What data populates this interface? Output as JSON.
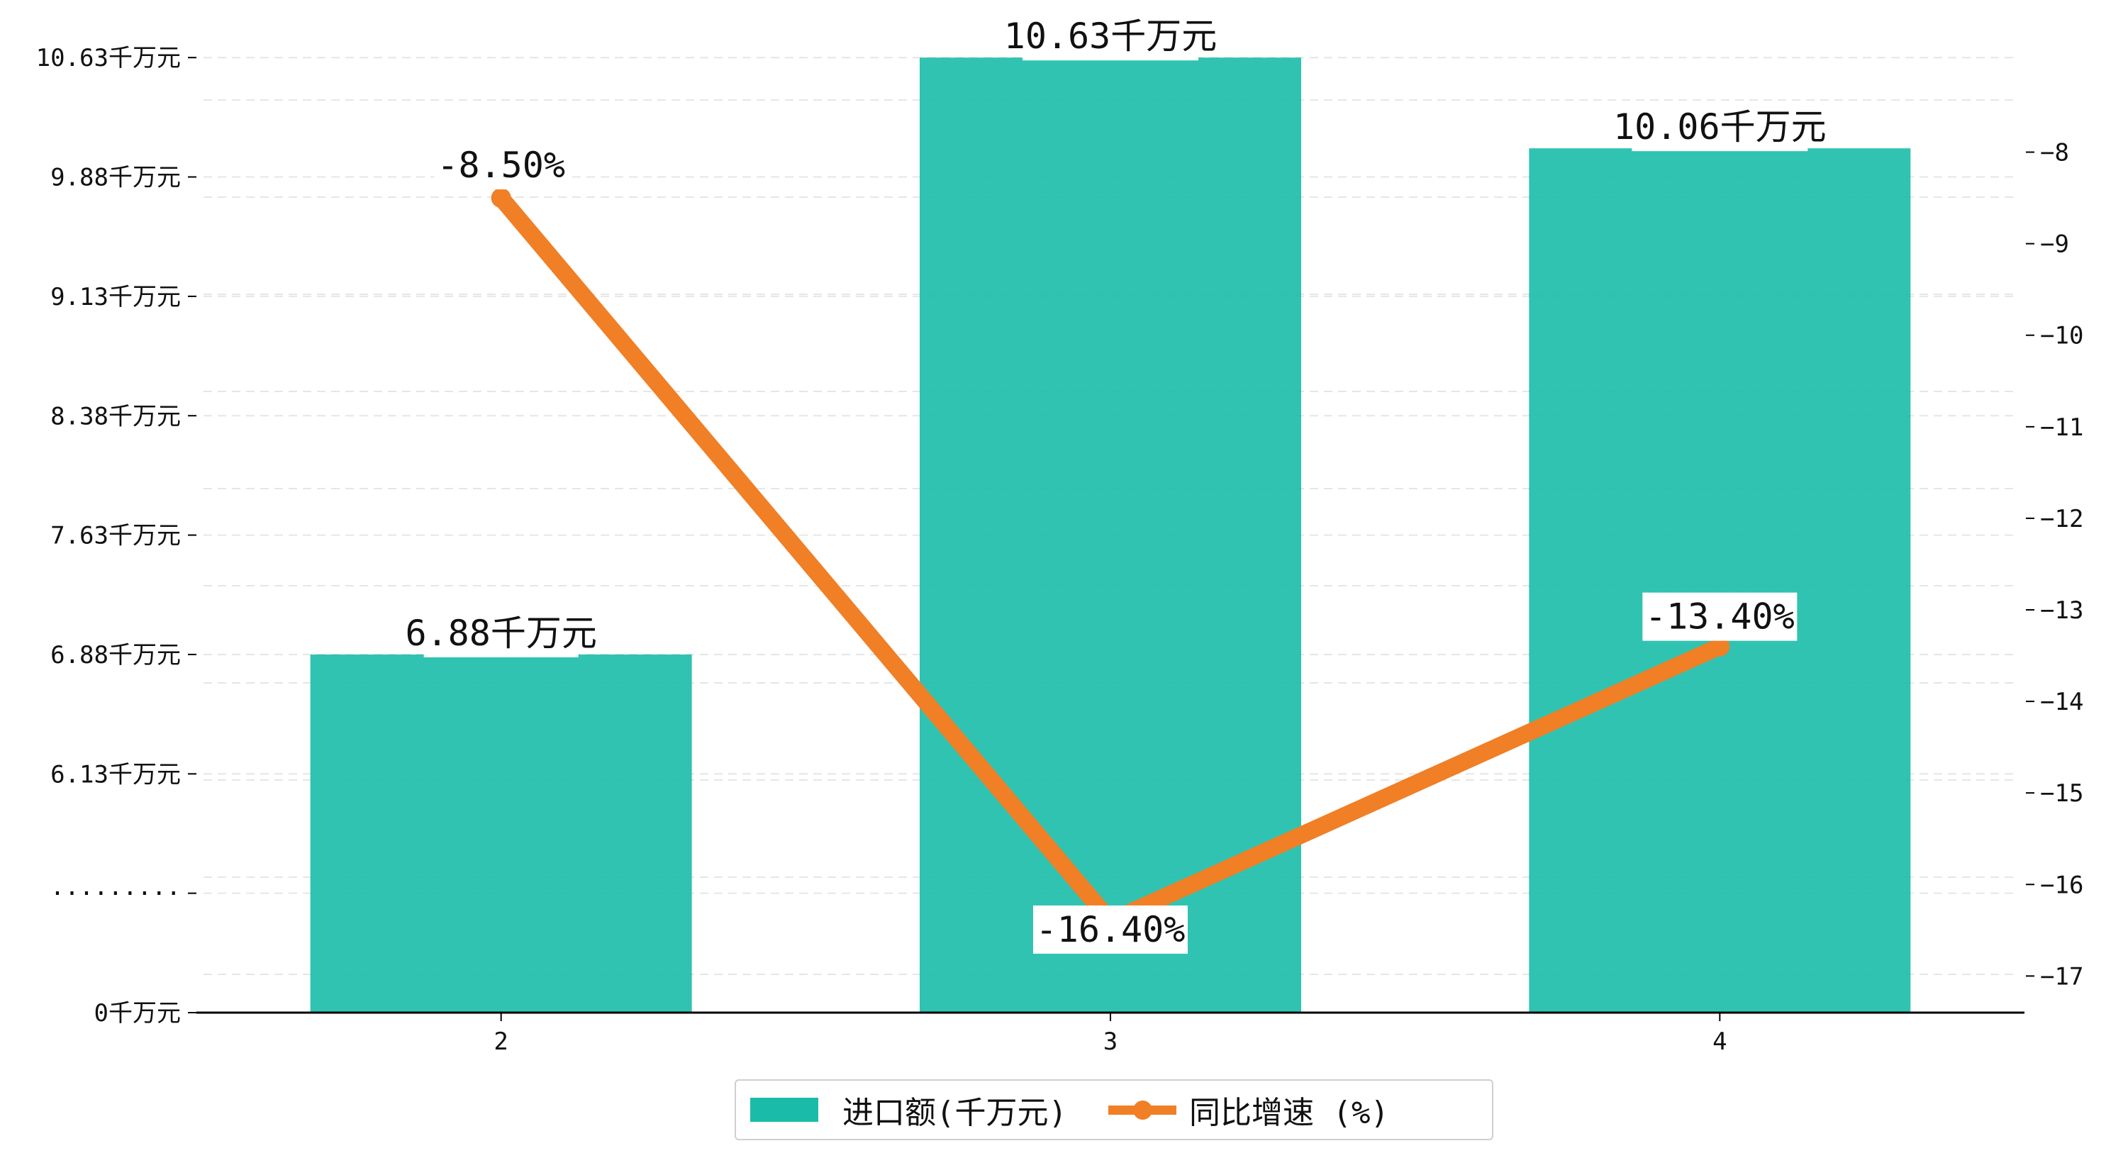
{
  "chart_data": {
    "type": "bar+line",
    "categories": [
      "2",
      "3",
      "4"
    ],
    "series": [
      {
        "name": "进口额(千万元)",
        "type": "bar",
        "axis": "left",
        "values": [
          6.88,
          10.63,
          10.06
        ],
        "labels": [
          "6.88千万元",
          "10.63千万元",
          "10.06千万元"
        ],
        "color": "#1ABCA9"
      },
      {
        "name": "同比增速 (%)",
        "type": "line",
        "axis": "right",
        "values": [
          -8.5,
          -16.4,
          -13.4
        ],
        "labels": [
          "-8.50%",
          "-16.40%",
          "-13.40%"
        ],
        "color": "#F07F26"
      }
    ],
    "left_axis": {
      "ticks": [
        0,
        0.75,
        6.13,
        6.88,
        7.63,
        8.38,
        9.13,
        9.88,
        10.63
      ],
      "tick_labels": [
        "0千万元",
        "·········",
        "6.13千万元",
        "6.88千万元",
        "7.63千万元",
        "8.38千万元",
        "9.13千万元",
        "9.88千万元",
        "10.63千万元"
      ],
      "note": "broken axis: the '·········' tick marks a jump from 0 to ~5.38"
    },
    "right_axis": {
      "range": [
        -17.4,
        -7.5
      ],
      "ticks": [
        -17,
        -16,
        -15,
        -14,
        -13,
        -12,
        -11,
        -10,
        -9,
        -8
      ],
      "tick_labels": [
        "−17",
        "−16",
        "−15",
        "−14",
        "−13",
        "−12",
        "−11",
        "−10",
        "−9",
        "−8"
      ]
    },
    "grid": "horizontal dashed",
    "legend": "bottom-center"
  }
}
